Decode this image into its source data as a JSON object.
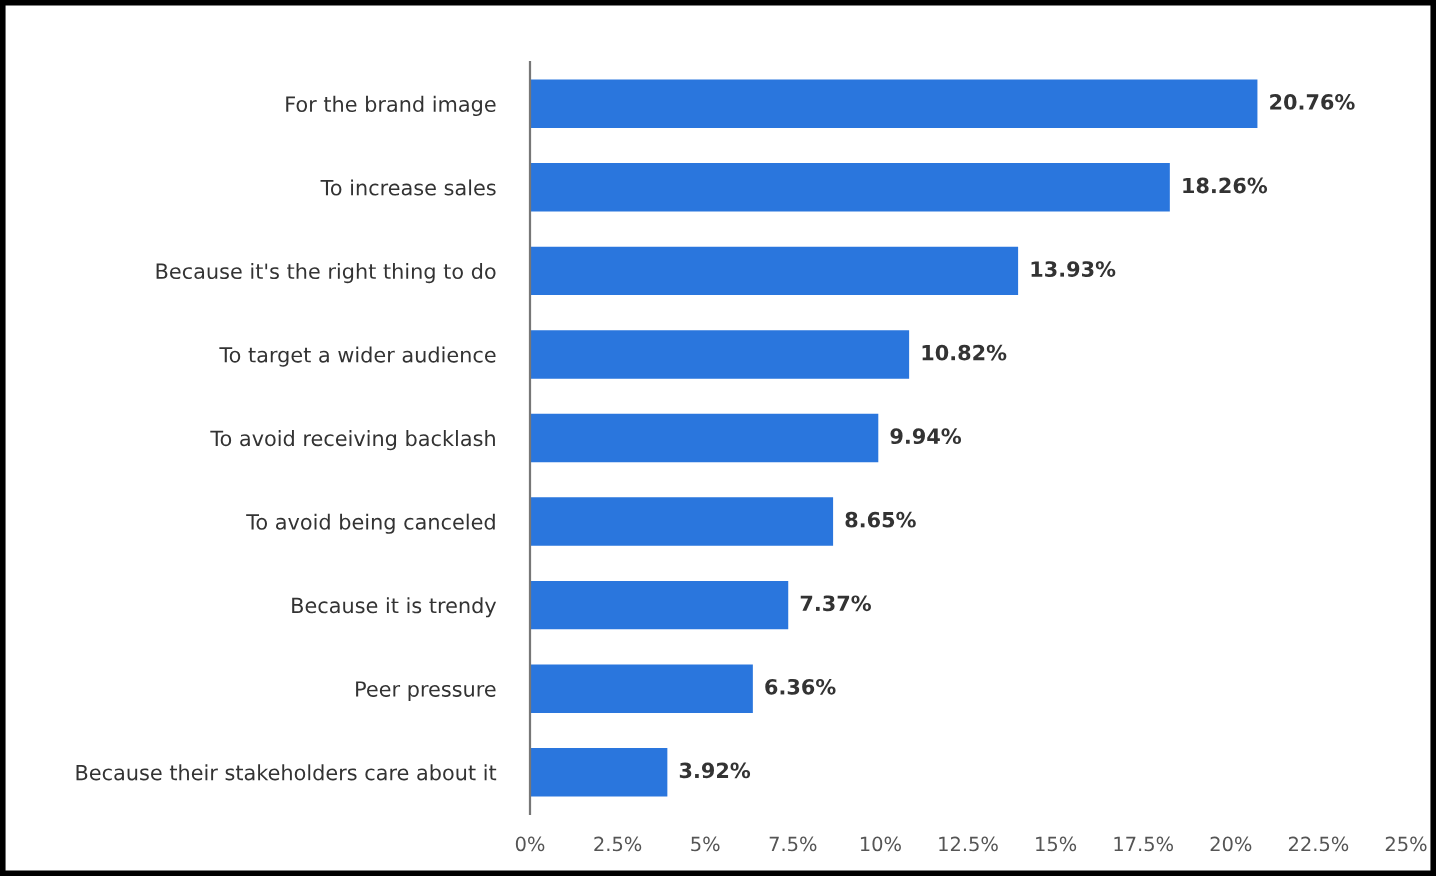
{
  "chart_data": {
    "type": "bar",
    "orientation": "horizontal",
    "categories": [
      "For the brand image",
      "To increase sales",
      "Because it's the right thing to do",
      "To target a wider audience",
      "To avoid receiving backlash",
      "To avoid being canceled",
      "Because it is trendy",
      "Peer pressure",
      "Because their stakeholders care about it"
    ],
    "values": [
      20.76,
      18.26,
      13.93,
      10.82,
      9.94,
      8.65,
      7.37,
      6.36,
      3.92
    ],
    "value_labels": [
      "20.76%",
      "18.26%",
      "13.93%",
      "10.82%",
      "9.94%",
      "8.65%",
      "7.37%",
      "6.36%",
      "3.92%"
    ],
    "color": "#2a76dd",
    "xlim": [
      0,
      25
    ],
    "xticks": [
      {
        "value": 0,
        "label": "0%"
      },
      {
        "value": 2.5,
        "label": "2.5%"
      },
      {
        "value": 5,
        "label": "5%"
      },
      {
        "value": 7.5,
        "label": "7.5%"
      },
      {
        "value": 10,
        "label": "10%"
      },
      {
        "value": 12.5,
        "label": "12.5%"
      },
      {
        "value": 15,
        "label": "15%"
      },
      {
        "value": 17.5,
        "label": "17.5%"
      },
      {
        "value": 20,
        "label": "20%"
      },
      {
        "value": 22.5,
        "label": "22.5%"
      },
      {
        "value": 25,
        "label": "25%"
      }
    ],
    "grid": false,
    "legend": false
  }
}
